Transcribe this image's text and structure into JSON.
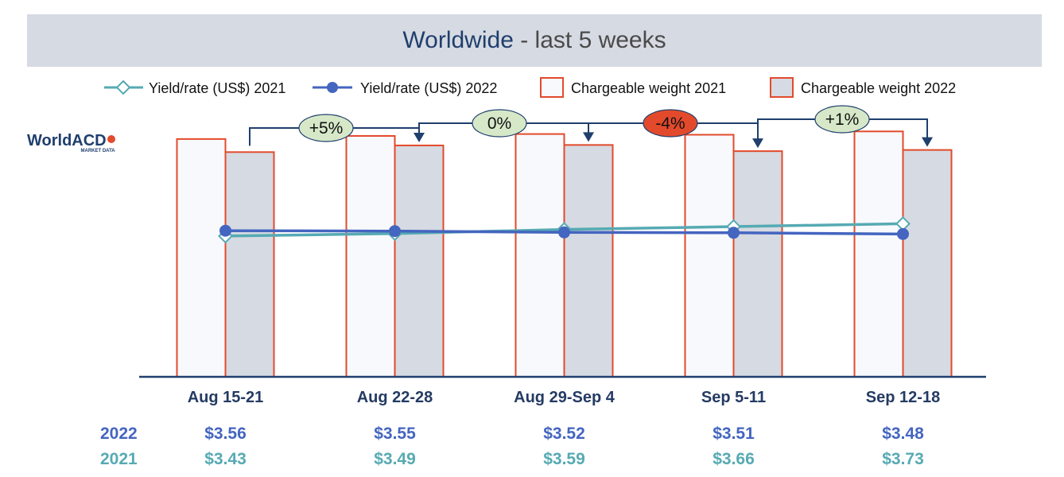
{
  "title": {
    "main": "Worldwide",
    "separator": " - ",
    "sub": "last 5 weeks"
  },
  "logo": {
    "name": "WorldACD",
    "tagline": "MARKET DATA"
  },
  "colors": {
    "yield_2021": "#56aab3",
    "yield_2022": "#4465c0",
    "bar_2021_fill": "#f8f9fc",
    "bar_2022_fill": "#d6dae2",
    "bar_border": "#e34a2c",
    "axis": "#1f3f6d",
    "change_positive": "#d6e8c8",
    "change_negative": "#e34a2c"
  },
  "chart_data": {
    "type": "bar",
    "categories": [
      "Aug 15-21",
      "Aug 22-28",
      "Aug 29-Sep 4",
      "Sep 5-11",
      "Sep 12-18"
    ],
    "legend": {
      "position": "top",
      "entries": [
        "Yield/rate (US$) 2021",
        "Yield/rate (US$) 2022",
        "Chargeable weight 2021",
        "Chargeable weight 2022"
      ]
    },
    "bar_series": [
      {
        "name": "Chargeable weight 2021",
        "values": [
          100,
          101.3,
          102.1,
          101.8,
          103.2
        ]
      },
      {
        "name": "Chargeable weight 2022",
        "values": [
          94.5,
          97.3,
          97.5,
          94.9,
          95.4
        ]
      }
    ],
    "bar_range": [
      0,
      115
    ],
    "line_series": [
      {
        "name": "Yield/rate (US$) 2021",
        "row_label": "2021",
        "labels": [
          "$3.43",
          "$3.49",
          "$3.59",
          "$3.66",
          "$3.73"
        ],
        "values": [
          3.43,
          3.49,
          3.59,
          3.66,
          3.73
        ]
      },
      {
        "name": "Yield/rate (US$) 2022",
        "row_label": "2022",
        "labels": [
          "$3.56",
          "$3.55",
          "$3.52",
          "$3.51",
          "$3.48"
        ],
        "values": [
          3.56,
          3.55,
          3.52,
          3.51,
          3.48
        ]
      }
    ],
    "line_range": [
      0,
      5.57
    ],
    "week_on_week_changes": [
      {
        "label": "+5%",
        "from": 0,
        "to": 1,
        "style": "positive"
      },
      {
        "label": "0%",
        "from": 1,
        "to": 2,
        "style": "positive"
      },
      {
        "label": "-4%",
        "from": 2,
        "to": 3,
        "style": "negative"
      },
      {
        "label": "+1%",
        "from": 3,
        "to": 4,
        "style": "positive"
      }
    ],
    "grid": false
  }
}
